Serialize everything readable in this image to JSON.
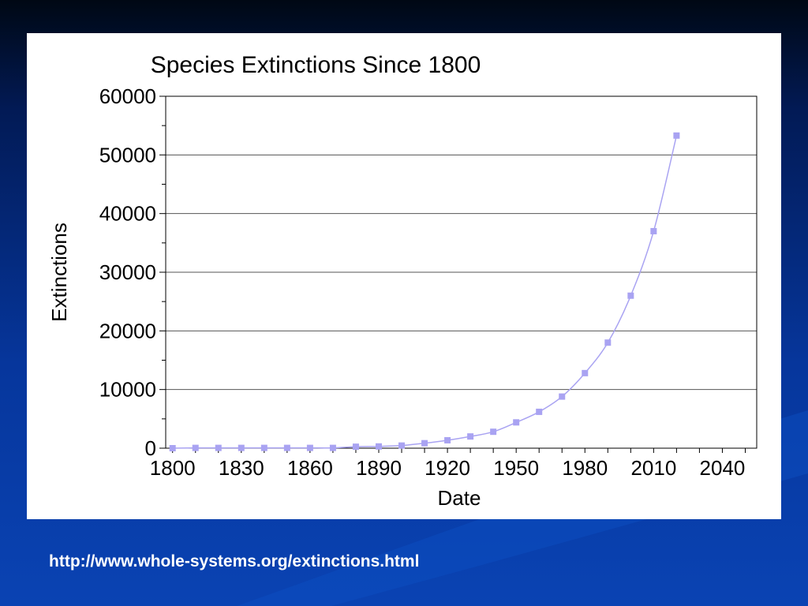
{
  "source": {
    "url_text": "http://www.whole-systems.org/extinctions.html"
  },
  "colors": {
    "background": "#06369c",
    "series": "#a9a3f2",
    "grid": "#555555"
  },
  "chart_data": {
    "type": "line",
    "title": "Species Extinctions Since 1800",
    "xlabel": "Date",
    "ylabel": "Extinctions",
    "xlim": [
      1797,
      2055
    ],
    "ylim": [
      0,
      60000
    ],
    "x_ticks": [
      1800,
      1830,
      1860,
      1890,
      1920,
      1950,
      1980,
      2010,
      2040
    ],
    "y_ticks": [
      0,
      10000,
      20000,
      30000,
      40000,
      50000,
      60000
    ],
    "grid": true,
    "legend": "none",
    "series": [
      {
        "x": [
          1800,
          1810,
          1820,
          1830,
          1840,
          1850,
          1860,
          1870,
          1880,
          1890,
          1900,
          1910,
          1920,
          1930,
          1940,
          1950,
          1960,
          1970,
          1980,
          1990,
          2000,
          2010,
          2020
        ],
        "y": [
          0,
          50,
          50,
          50,
          50,
          50,
          50,
          50,
          250,
          300,
          450,
          850,
          1350,
          2000,
          2800,
          4400,
          6200,
          8800,
          12800,
          18000,
          26000,
          37000,
          53300
        ]
      }
    ]
  }
}
